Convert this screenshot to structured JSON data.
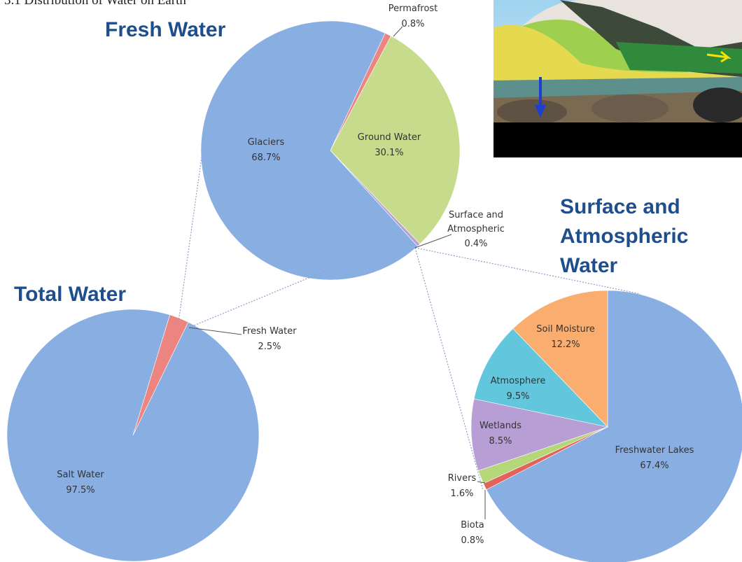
{
  "caption": "3.1 Distribution of Water on Earth",
  "chart_data": [
    {
      "type": "pie",
      "title": "Total Water",
      "start_angle": 17,
      "categories": [
        "Fresh Water",
        "Salt Water"
      ],
      "values": [
        2.5,
        97.5
      ],
      "value_labels": [
        "2.5%",
        "97.5%"
      ],
      "colors": [
        "#ec8580",
        "#88aee2"
      ]
    },
    {
      "type": "pie",
      "title": "Fresh Water",
      "start_angle": 25,
      "categories": [
        "Permafrost",
        "Ground Water",
        "Surface and Atmospheric",
        "Glaciers"
      ],
      "values": [
        0.8,
        30.1,
        0.4,
        68.7
      ],
      "value_labels": [
        "0.8%",
        "30.1%",
        "0.4%",
        "68.7%"
      ],
      "colors": [
        "#ec8580",
        "#c6dc8c",
        "#b79fd6",
        "#88aee2"
      ]
    },
    {
      "type": "pie",
      "title": "Surface and Atmospheric Water",
      "start_angle": 0,
      "categories": [
        "Freshwater Lakes",
        "Biota",
        "Rivers",
        "Wetlands",
        "Atmosphere",
        "Soil Moisture"
      ],
      "values": [
        67.4,
        0.8,
        1.6,
        8.5,
        9.5,
        12.2
      ],
      "value_labels": [
        "67.4%",
        "0.8%",
        "1.6%",
        "8.5%",
        "9.5%",
        "12.2%"
      ],
      "colors": [
        "#88aee2",
        "#e2625c",
        "#b6d67a",
        "#b79fd6",
        "#62c6dd",
        "#f9ad6e"
      ]
    }
  ]
}
